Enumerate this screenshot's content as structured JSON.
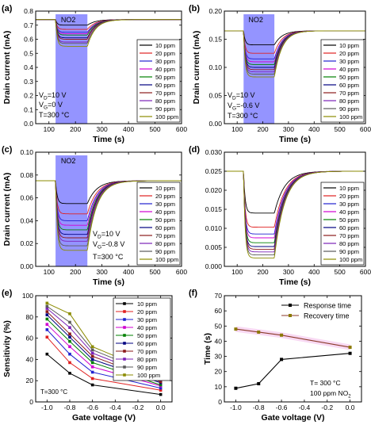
{
  "chart_data": [
    {
      "panel": "(a)",
      "type": "line",
      "band_label": "NO2",
      "band_x": [
        125,
        245
      ],
      "xlabel": "Time (s)",
      "ylabel": "Drain current (mA)",
      "xlim": [
        50,
        600
      ],
      "ylim": [
        0.0,
        0.8
      ],
      "xticks": [
        100,
        200,
        300,
        400,
        500,
        600
      ],
      "yticks": [
        0.0,
        0.1,
        0.2,
        0.3,
        0.4,
        0.5,
        0.6,
        0.7,
        0.8
      ],
      "ytick_labels": [
        "0.0",
        "0.1",
        "0.2",
        "0.3",
        "0.4",
        "0.5",
        "0.6",
        "0.7",
        "0.8"
      ],
      "conditions": [
        "VD=10 V",
        "VG=0 V",
        "T=300 °C"
      ],
      "baseline": 0.74,
      "rec_tau": 30,
      "legend": [
        "10 ppm",
        "20 ppm",
        "30 ppm",
        "40 ppm",
        "50 ppm",
        "60 ppm",
        "70 ppm",
        "80 ppm",
        "90 ppm",
        "100 ppm"
      ],
      "minimums": [
        0.7,
        0.67,
        0.65,
        0.64,
        0.63,
        0.61,
        0.6,
        0.58,
        0.57,
        0.55
      ]
    },
    {
      "panel": "(b)",
      "type": "line",
      "band_label": "NO2",
      "band_x": [
        125,
        245
      ],
      "xlabel": "Time (s)",
      "ylabel": "Drain current (mA)",
      "xlim": [
        50,
        600
      ],
      "ylim": [
        0.0,
        0.2
      ],
      "xticks": [
        100,
        200,
        300,
        400,
        500,
        600
      ],
      "yticks": [
        0.0,
        0.05,
        0.1,
        0.15,
        0.2
      ],
      "ytick_labels": [
        "0.00",
        "0.05",
        "0.10",
        "0.15",
        "0.20"
      ],
      "conditions": [
        "VD=10 V",
        "VG=-0.6 V",
        "T=300 °C"
      ],
      "baseline": 0.165,
      "rec_tau": 30,
      "legend": [
        "10 ppm",
        "20 ppm",
        "30 ppm",
        "40 ppm",
        "50 ppm",
        "60 ppm",
        "70 ppm",
        "80 ppm",
        "90 ppm",
        "100 ppm"
      ],
      "minimums": [
        0.14,
        0.125,
        0.115,
        0.11,
        0.105,
        0.1,
        0.096,
        0.092,
        0.088,
        0.083
      ]
    },
    {
      "panel": "(c)",
      "type": "line",
      "band_label": "NO2",
      "band_x": [
        125,
        245
      ],
      "xlabel": "Time (s)",
      "ylabel": "Drain current (mA)",
      "xlim": [
        50,
        600
      ],
      "ylim": [
        0.0,
        0.1
      ],
      "xticks": [
        100,
        200,
        300,
        400,
        500,
        600
      ],
      "yticks": [
        0.0,
        0.02,
        0.04,
        0.06,
        0.08,
        0.1
      ],
      "ytick_labels": [
        "0.00",
        "0.02",
        "0.04",
        "0.06",
        "0.08",
        "0.10"
      ],
      "conditions": [
        "VD=10 V",
        "VG=-0.8 V",
        "T=300 °C"
      ],
      "baseline": 0.075,
      "rec_tau": 35,
      "legend": [
        "10 ppm",
        "20 ppm",
        "30 ppm",
        "40 ppm",
        "50 ppm",
        "60 ppm",
        "70 ppm",
        "80 ppm",
        "90 ppm",
        "100 ppm"
      ],
      "minimums": [
        0.055,
        0.046,
        0.04,
        0.036,
        0.032,
        0.028,
        0.025,
        0.022,
        0.018,
        0.014
      ]
    },
    {
      "panel": "(d)",
      "type": "line",
      "xlabel": "Time (s)",
      "ylabel": "",
      "xlim": [
        50,
        600
      ],
      "ylim": [
        0.0,
        0.03
      ],
      "xticks": [
        100,
        200,
        300,
        400,
        500,
        600
      ],
      "yticks": [
        0.0,
        0.005,
        0.01,
        0.015,
        0.02,
        0.025,
        0.03
      ],
      "ytick_labels": [
        "0.000",
        "0.005",
        "0.010",
        "0.015",
        "0.020",
        "0.025",
        "0.030"
      ],
      "baseline": 0.025,
      "rec_tau": 40,
      "legend": [
        "10 ppm",
        "20 ppm",
        "30 ppm",
        "40 ppm",
        "50 ppm",
        "60 ppm",
        "70 ppm",
        "80 ppm",
        "90 ppm",
        "100 ppm"
      ],
      "minimums": [
        0.014,
        0.0103,
        0.0085,
        0.0075,
        0.0062,
        0.0052,
        0.0045,
        0.0038,
        0.003,
        0.0022
      ]
    },
    {
      "panel": "(e)",
      "type": "line",
      "xlabel": "Gate voltage (V)",
      "ylabel": "Sensitivity (%)",
      "xlim": [
        -1.1,
        0.1
      ],
      "ylim": [
        0,
        100
      ],
      "xticks": [
        -1.0,
        -0.8,
        -0.6,
        -0.4,
        -0.2,
        0.0
      ],
      "xtick_labels": [
        "-1.0",
        "-0.8",
        "-0.6",
        "-0.4",
        "-0.2",
        "0.0"
      ],
      "yticks": [
        0,
        20,
        40,
        60,
        80,
        100
      ],
      "ytick_labels": [
        "0",
        "20",
        "40",
        "60",
        "80",
        "100"
      ],
      "x": [
        -1.0,
        -0.8,
        -0.6,
        0.0
      ],
      "annotation": "T=300 °C",
      "series": [
        {
          "name": "10 ppm",
          "values": [
            45,
            27,
            16,
            7
          ]
        },
        {
          "name": "20 ppm",
          "values": [
            61,
            37,
            22,
            11
          ]
        },
        {
          "name": "30 ppm",
          "values": [
            68,
            45,
            28,
            13
          ]
        },
        {
          "name": "40 ppm",
          "values": [
            73,
            52,
            33,
            15
          ]
        },
        {
          "name": "50 ppm",
          "values": [
            78,
            57,
            37,
            16
          ]
        },
        {
          "name": "60 ppm",
          "values": [
            82,
            61,
            40,
            18
          ]
        },
        {
          "name": "70 ppm",
          "values": [
            85,
            64,
            43,
            19
          ]
        },
        {
          "name": "80 ppm",
          "values": [
            88,
            70,
            46,
            21
          ]
        },
        {
          "name": "90 ppm",
          "values": [
            90,
            75,
            49,
            23
          ]
        },
        {
          "name": "100 ppm",
          "values": [
            93,
            83,
            52,
            25
          ]
        }
      ]
    },
    {
      "panel": "(f)",
      "type": "line",
      "xlabel": "Gate voltage (V)",
      "ylabel": "Time (s)",
      "xlim": [
        -1.1,
        0.1
      ],
      "ylim": [
        0,
        70
      ],
      "xticks": [
        -1.0,
        -0.8,
        -0.6,
        -0.4,
        -0.2,
        0.0
      ],
      "xtick_labels": [
        "-1.0",
        "-0.8",
        "-0.6",
        "-0.4",
        "-0.2",
        "0.0"
      ],
      "yticks": [
        0,
        10,
        20,
        30,
        40,
        50,
        60,
        70
      ],
      "ytick_labels": [
        "0",
        "10",
        "20",
        "30",
        "40",
        "50",
        "60",
        "70"
      ],
      "annotation": [
        "T= 300 °C",
        "100 ppm NO2"
      ],
      "series": [
        {
          "name": "Response time",
          "x": [
            -1.0,
            -0.8,
            -0.6,
            0.0
          ],
          "values": [
            9,
            12,
            28,
            32
          ]
        },
        {
          "name": "Recovery time",
          "x": [
            -1.0,
            -0.8,
            -0.6,
            0.0
          ],
          "values": [
            48,
            46,
            44,
            36
          ]
        }
      ]
    }
  ],
  "colors": {
    "series": [
      "#000000",
      "#e02020",
      "#2020d0",
      "#d000d0",
      "#008000",
      "#000080",
      "#8b1a1a",
      "#7b22b8",
      "#5a5a5a",
      "#8b8b00"
    ],
    "band": "#7070ff",
    "response": "#000000",
    "recovery": "#8b3a2a",
    "recovery_marker": "#8b7a00",
    "shade": "#f6d0f0"
  }
}
